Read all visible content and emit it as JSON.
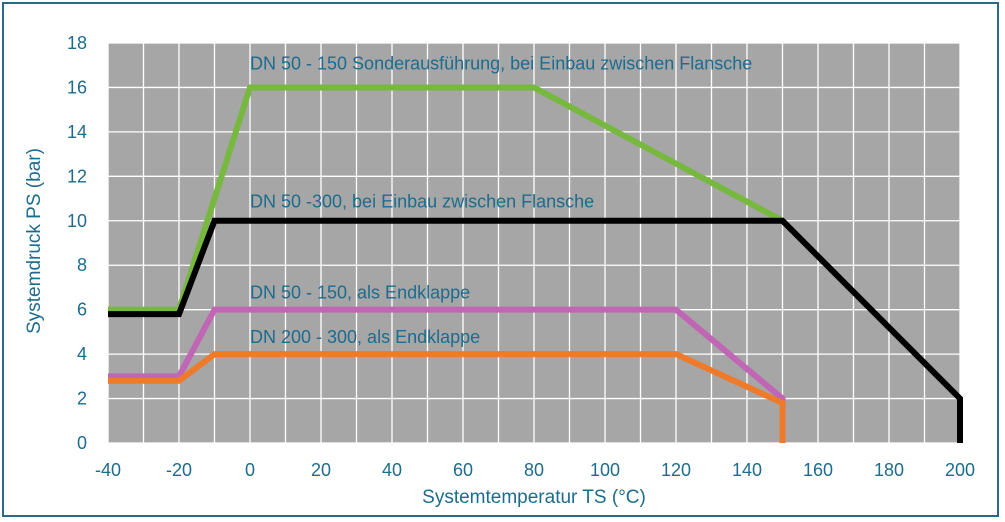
{
  "chart_data": {
    "type": "line",
    "xlabel": "Systemtemperatur TS (°C)",
    "ylabel": "Systemdruck PS (bar)",
    "xlim": [
      -40,
      200
    ],
    "ylim": [
      0,
      18
    ],
    "xticks": [
      -40,
      -20,
      0,
      20,
      40,
      60,
      80,
      100,
      120,
      140,
      160,
      180,
      200
    ],
    "yticks": [
      0,
      2,
      4,
      6,
      8,
      10,
      12,
      14,
      16,
      18
    ],
    "xtick_labels": [
      "-40",
      "-20",
      "0",
      "20",
      "40",
      "60",
      "80",
      "100",
      "120",
      "140",
      "160",
      "180",
      "200"
    ],
    "ytick_labels": [
      "0",
      "2",
      "4",
      "6",
      "8",
      "10",
      "12",
      "14",
      "16",
      "18"
    ],
    "grid": true,
    "background_color": "#a6a6a6",
    "grid_color": "#ffffff",
    "text_color": "#1d6c8e",
    "series": [
      {
        "name": "DN 50 - 150 Sonderausführung, bei Einbau zwischen Flansche",
        "color": "#77b83f",
        "points": [
          [
            -40,
            6
          ],
          [
            -20,
            6
          ],
          [
            0,
            16
          ],
          [
            80,
            16
          ],
          [
            150,
            10
          ]
        ],
        "label_at": [
          0,
          16.8
        ]
      },
      {
        "name": "DN 50 -300, bei Einbau zwischen Flansche",
        "color": "#000000",
        "points": [
          [
            -40,
            5.8
          ],
          [
            -20,
            5.8
          ],
          [
            -10,
            10
          ],
          [
            150,
            10
          ],
          [
            200,
            2
          ],
          [
            200,
            0
          ]
        ],
        "label_at": [
          0,
          10.6
        ]
      },
      {
        "name": "DN 50 - 150, als Endklappe",
        "color": "#c066b5",
        "points": [
          [
            -40,
            3
          ],
          [
            -20,
            3
          ],
          [
            -10,
            6
          ],
          [
            120,
            6
          ],
          [
            150,
            2
          ],
          [
            150,
            0
          ]
        ],
        "label_at": [
          0,
          6.5
        ]
      },
      {
        "name": "DN 200 - 300, als Endklappe",
        "color": "#ee7a2a",
        "points": [
          [
            -40,
            2.8
          ],
          [
            -20,
            2.8
          ],
          [
            -10,
            4
          ],
          [
            120,
            4
          ],
          [
            150,
            1.8
          ],
          [
            150,
            0
          ]
        ],
        "label_at": [
          0,
          4.5
        ]
      }
    ]
  }
}
